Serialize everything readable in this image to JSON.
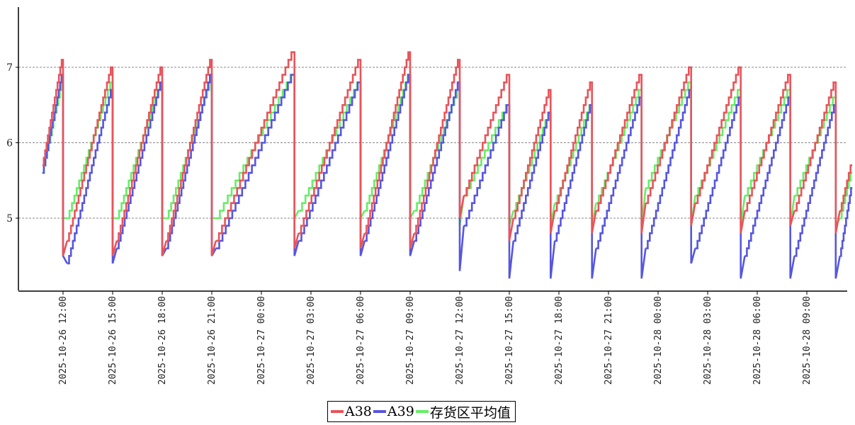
{
  "chart_data": {
    "type": "line",
    "title": "",
    "xlabel": "",
    "ylabel": "",
    "x_range": [
      "2025-10-26 10:30",
      "2025-10-28 11:45"
    ],
    "ylim": [
      4.0,
      7.85
    ],
    "y_ticks": [
      5,
      6,
      7
    ],
    "grid": "horizontal dashed at y ticks",
    "x_ticks": [
      "2025-10-26 12:00",
      "2025-10-26 15:00",
      "2025-10-26 18:00",
      "2025-10-26 21:00",
      "2025-10-27 00:00",
      "2025-10-27 03:00",
      "2025-10-27 06:00",
      "2025-10-27 09:00",
      "2025-10-27 12:00",
      "2025-10-27 15:00",
      "2025-10-27 18:00",
      "2025-10-27 21:00",
      "2025-10-28 00:00",
      "2025-10-28 03:00",
      "2025-10-28 06:00",
      "2025-10-28 09:00"
    ],
    "legend_position": "bottom-center",
    "series": [
      {
        "name": "A38",
        "color": "#e8545a",
        "cycles": [
          {
            "start": "2025-10-26 10:45",
            "end": "2025-10-26 12:00",
            "from": 5.7,
            "to": 7.1,
            "drop": 4.5
          },
          {
            "start": "2025-10-26 12:15",
            "end": "2025-10-26 15:00",
            "from": 4.7,
            "to": 7.0,
            "drop": 4.5
          },
          {
            "start": "2025-10-26 15:15",
            "end": "2025-10-26 18:00",
            "from": 4.7,
            "to": 7.0,
            "drop": 4.5
          },
          {
            "start": "2025-10-26 18:15",
            "end": "2025-10-26 21:00",
            "from": 4.7,
            "to": 7.1,
            "drop": 4.5
          },
          {
            "start": "2025-10-26 21:15",
            "end": "2025-10-27 02:00",
            "from": 4.7,
            "to": 7.2,
            "drop": 4.6
          },
          {
            "start": "2025-10-27 02:15",
            "end": "2025-10-27 06:00",
            "from": 4.8,
            "to": 7.1,
            "drop": 4.6
          },
          {
            "start": "2025-10-27 06:15",
            "end": "2025-10-27 09:00",
            "from": 4.8,
            "to": 7.2,
            "drop": 4.6
          },
          {
            "start": "2025-10-27 09:15",
            "end": "2025-10-27 12:00",
            "from": 4.8,
            "to": 7.1,
            "drop": 5.0
          },
          {
            "start": "2025-10-27 12:15",
            "end": "2025-10-27 15:00",
            "from": 5.3,
            "to": 6.9,
            "drop": 4.7
          },
          {
            "start": "2025-10-27 15:15",
            "end": "2025-10-27 17:30",
            "from": 5.0,
            "to": 6.7,
            "drop": 4.8
          },
          {
            "start": "2025-10-27 17:45",
            "end": "2025-10-27 20:00",
            "from": 5.1,
            "to": 6.8,
            "drop": 4.8
          },
          {
            "start": "2025-10-27 20:15",
            "end": "2025-10-27 23:00",
            "from": 5.1,
            "to": 6.9,
            "drop": 4.8
          },
          {
            "start": "2025-10-27 23:15",
            "end": "2025-10-28 02:00",
            "from": 5.2,
            "to": 7.0,
            "drop": 4.9
          },
          {
            "start": "2025-10-28 02:15",
            "end": "2025-10-28 05:00",
            "from": 5.2,
            "to": 7.0,
            "drop": 4.8
          },
          {
            "start": "2025-10-28 05:15",
            "end": "2025-10-28 08:00",
            "from": 5.1,
            "to": 6.9,
            "drop": 4.9
          },
          {
            "start": "2025-10-28 08:15",
            "end": "2025-10-28 10:45",
            "from": 5.1,
            "to": 6.8,
            "drop": 4.8
          },
          {
            "start": "2025-10-28 11:00",
            "end": "2025-10-28 11:45",
            "from": 5.1,
            "to": 5.7,
            "drop": null
          }
        ]
      },
      {
        "name": "A39",
        "color": "#5656e0",
        "cycles": [
          {
            "start": "2025-10-26 10:45",
            "end": "2025-10-26 12:00",
            "from": 5.6,
            "to": 6.9,
            "drop": 4.5
          },
          {
            "start": "2025-10-26 12:15",
            "end": "2025-10-26 15:00",
            "from": 4.4,
            "to": 6.7,
            "drop": 4.4
          },
          {
            "start": "2025-10-26 15:15",
            "end": "2025-10-26 18:00",
            "from": 4.6,
            "to": 6.8,
            "drop": 4.5
          },
          {
            "start": "2025-10-26 18:15",
            "end": "2025-10-26 21:00",
            "from": 4.6,
            "to": 6.9,
            "drop": 4.5
          },
          {
            "start": "2025-10-26 21:15",
            "end": "2025-10-27 02:00",
            "from": 4.6,
            "to": 6.9,
            "drop": 4.5
          },
          {
            "start": "2025-10-27 02:15",
            "end": "2025-10-27 06:00",
            "from": 4.7,
            "to": 6.8,
            "drop": 4.5
          },
          {
            "start": "2025-10-27 06:15",
            "end": "2025-10-27 09:00",
            "from": 4.7,
            "to": 6.9,
            "drop": 4.5
          },
          {
            "start": "2025-10-27 09:15",
            "end": "2025-10-27 12:00",
            "from": 4.7,
            "to": 6.8,
            "drop": 4.3
          },
          {
            "start": "2025-10-27 12:15",
            "end": "2025-10-27 15:00",
            "from": 4.9,
            "to": 6.5,
            "drop": 4.2
          },
          {
            "start": "2025-10-27 15:15",
            "end": "2025-10-27 17:30",
            "from": 4.7,
            "to": 6.4,
            "drop": 4.2
          },
          {
            "start": "2025-10-27 17:45",
            "end": "2025-10-27 20:00",
            "from": 4.7,
            "to": 6.5,
            "drop": 4.2
          },
          {
            "start": "2025-10-27 20:15",
            "end": "2025-10-27 23:00",
            "from": 4.6,
            "to": 6.6,
            "drop": 4.2
          },
          {
            "start": "2025-10-27 23:15",
            "end": "2025-10-28 02:00",
            "from": 4.6,
            "to": 6.7,
            "drop": 4.4
          },
          {
            "start": "2025-10-28 02:15",
            "end": "2025-10-28 05:00",
            "from": 4.6,
            "to": 6.6,
            "drop": 4.2
          },
          {
            "start": "2025-10-28 05:15",
            "end": "2025-10-28 08:00",
            "from": 4.5,
            "to": 6.6,
            "drop": 4.2
          },
          {
            "start": "2025-10-28 08:15",
            "end": "2025-10-28 10:45",
            "from": 4.5,
            "to": 6.5,
            "drop": 4.2
          },
          {
            "start": "2025-10-28 11:00",
            "end": "2025-10-28 11:45",
            "from": 4.5,
            "to": 5.4,
            "drop": null
          }
        ]
      },
      {
        "name": "存货区平均值",
        "color": "#66ee66",
        "cycles": [
          {
            "start": "2025-10-26 10:45",
            "end": "2025-10-26 12:00",
            "from": 5.6,
            "to": 6.8,
            "drop": 5.0
          },
          {
            "start": "2025-10-26 12:15",
            "end": "2025-10-26 15:00",
            "from": 5.0,
            "to": 6.8,
            "drop": 5.0
          },
          {
            "start": "2025-10-26 15:15",
            "end": "2025-10-26 18:00",
            "from": 5.0,
            "to": 6.8,
            "drop": 5.0
          },
          {
            "start": "2025-10-26 18:15",
            "end": "2025-10-26 21:00",
            "from": 5.0,
            "to": 6.8,
            "drop": 5.0
          },
          {
            "start": "2025-10-26 21:15",
            "end": "2025-10-27 02:00",
            "from": 5.0,
            "to": 6.9,
            "drop": 5.0
          },
          {
            "start": "2025-10-27 02:15",
            "end": "2025-10-27 06:00",
            "from": 5.1,
            "to": 6.8,
            "drop": 5.0
          },
          {
            "start": "2025-10-27 06:15",
            "end": "2025-10-27 09:00",
            "from": 5.1,
            "to": 6.9,
            "drop": 5.0
          },
          {
            "start": "2025-10-27 09:15",
            "end": "2025-10-27 12:00",
            "from": 5.1,
            "to": 6.7,
            "drop": 4.9
          },
          {
            "start": "2025-10-27 12:15",
            "end": "2025-10-27 15:00",
            "from": 5.3,
            "to": 6.5,
            "drop": 4.9
          },
          {
            "start": "2025-10-27 15:15",
            "end": "2025-10-27 17:30",
            "from": 5.1,
            "to": 6.4,
            "drop": 4.9
          },
          {
            "start": "2025-10-27 17:45",
            "end": "2025-10-27 20:00",
            "from": 5.2,
            "to": 6.5,
            "drop": 4.9
          },
          {
            "start": "2025-10-27 20:15",
            "end": "2025-10-27 23:00",
            "from": 5.2,
            "to": 6.7,
            "drop": 4.9
          },
          {
            "start": "2025-10-27 23:15",
            "end": "2025-10-28 02:00",
            "from": 5.4,
            "to": 6.8,
            "drop": 4.9
          },
          {
            "start": "2025-10-28 02:15",
            "end": "2025-10-28 05:00",
            "from": 5.3,
            "to": 6.7,
            "drop": 4.9
          },
          {
            "start": "2025-10-28 05:15",
            "end": "2025-10-28 08:00",
            "from": 5.3,
            "to": 6.7,
            "drop": 4.9
          },
          {
            "start": "2025-10-28 08:15",
            "end": "2025-10-28 10:45",
            "from": 5.3,
            "to": 6.6,
            "drop": 4.9
          },
          {
            "start": "2025-10-28 11:00",
            "end": "2025-10-28 11:45",
            "from": 5.0,
            "to": 5.6,
            "drop": null
          }
        ]
      }
    ]
  }
}
